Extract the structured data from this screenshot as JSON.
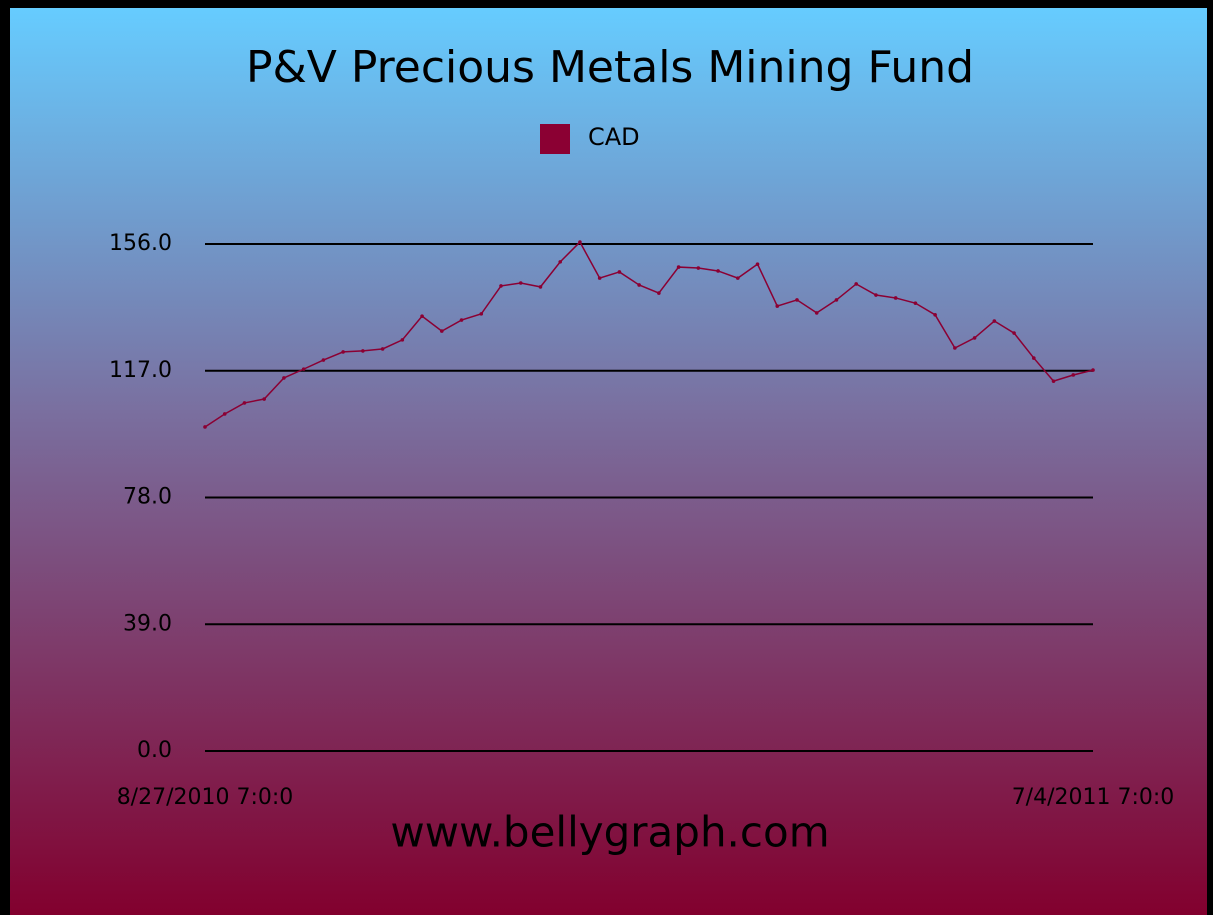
{
  "chart_data": {
    "type": "line",
    "title": "P&V Precious Metals Mining Fund",
    "footer": "www.bellygraph.com",
    "categories": [
      "8/27/2010 7:0:0",
      null,
      null,
      null,
      null,
      null,
      null,
      null,
      null,
      null,
      null,
      null,
      null,
      null,
      null,
      null,
      null,
      null,
      null,
      null,
      null,
      null,
      null,
      null,
      null,
      null,
      null,
      null,
      null,
      null,
      null,
      null,
      null,
      null,
      null,
      null,
      null,
      null,
      null,
      null,
      null,
      null,
      null,
      null,
      null,
      "7/4/2011 7:0:0"
    ],
    "series": [
      {
        "name": "CAD",
        "color": "#8b0033",
        "values": [
          99.7,
          103.7,
          107.1,
          108.3,
          114.8,
          117.5,
          120.3,
          122.8,
          123.1,
          123.7,
          126.5,
          133.8,
          129.2,
          132.6,
          134.5,
          143.1,
          144.0,
          142.8,
          150.5,
          156.6,
          145.5,
          147.4,
          143.4,
          140.9,
          148.9,
          148.6,
          147.7,
          145.5,
          149.8,
          136.9,
          138.8,
          134.8,
          138.8,
          143.7,
          140.3,
          139.4,
          137.8,
          134.2,
          124.0,
          127.1,
          132.3,
          128.6,
          120.9,
          113.8,
          115.7,
          117.2
        ]
      }
    ],
    "ylim": [
      0,
      156
    ],
    "yticks": [
      {
        "value": 0,
        "label": "0.0"
      },
      {
        "value": 39,
        "label": "39.0"
      },
      {
        "value": 78,
        "label": "78.0"
      },
      {
        "value": 117,
        "label": "117.0"
      },
      {
        "value": 156,
        "label": "156.0"
      }
    ],
    "grid": true,
    "legend": "top"
  }
}
